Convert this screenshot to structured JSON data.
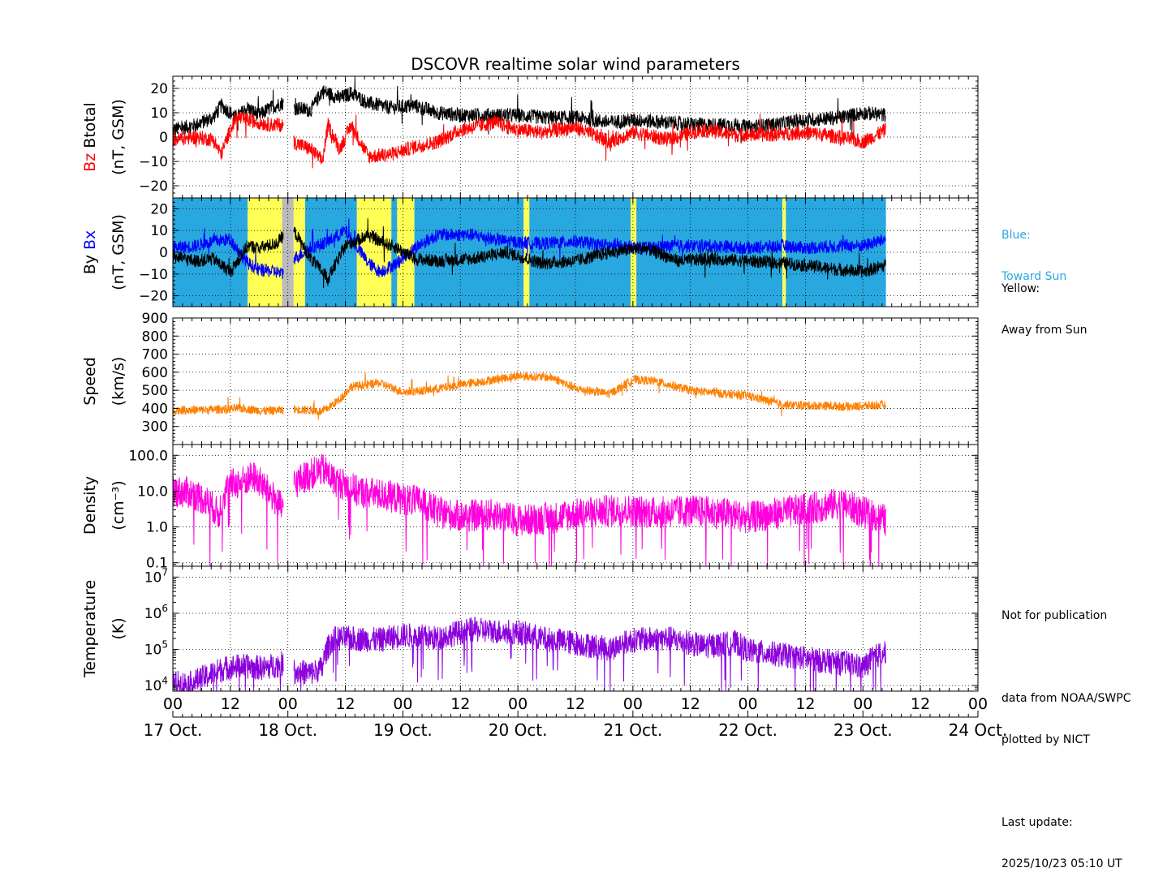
{
  "chart_data": {
    "type": "line",
    "title": "DSCOVR realtime solar wind parameters",
    "x_axis": {
      "range_days": [
        0,
        7
      ],
      "hour_tick_labels": [
        "00",
        "12",
        "00",
        "12",
        "00",
        "12",
        "00",
        "12",
        "00",
        "12",
        "00",
        "12",
        "00",
        "12",
        "00"
      ],
      "date_labels": [
        "17 Oct.",
        "18 Oct.",
        "19 Oct.",
        "20 Oct.",
        "21 Oct.",
        "22 Oct.",
        "23 Oct.",
        "24 Oct."
      ],
      "data_end_day": 6.2
    },
    "panels": [
      {
        "id": "mag",
        "ylabel_parts": [
          {
            "text": "Bz",
            "color": "#ff0000"
          },
          {
            "text": "Btotal",
            "color": "#000000"
          }
        ],
        "ylabel_unit": "(nT, GSM)",
        "ylim": [
          -25,
          25
        ],
        "yticks": [
          -20,
          -10,
          0,
          10,
          20
        ],
        "ytick_labels": [
          "−20",
          "−10",
          "0",
          "10",
          "20"
        ],
        "scale": "linear",
        "series": [
          {
            "name": "Btotal",
            "color": "#000000",
            "gaps": [
              [
                0.96,
                1.05
              ]
            ],
            "x": [
              0,
              0.2,
              0.35,
              0.42,
              0.5,
              0.55,
              0.65,
              0.75,
              0.85,
              0.95,
              1.05,
              1.2,
              1.3,
              1.45,
              1.55,
              1.7,
              1.9,
              2.1,
              2.3,
              2.5,
              2.8,
              3.0,
              3.2,
              3.5,
              3.8,
              4.0,
              4.3,
              4.6,
              4.9,
              5.0,
              5.2,
              5.5,
              5.8,
              6.0,
              6.2
            ],
            "y": [
              3,
              5,
              8,
              13,
              10,
              8,
              12,
              9,
              12,
              14,
              12,
              11,
              19,
              16,
              18,
              14,
              12,
              13,
              10,
              9,
              9,
              9,
              8,
              8,
              6,
              7,
              6,
              5,
              5,
              4,
              5,
              7,
              8,
              10,
              9
            ]
          },
          {
            "name": "Bz",
            "color": "#ff0000",
            "gaps": [
              [
                0.96,
                1.05
              ]
            ],
            "x": [
              0,
              0.2,
              0.35,
              0.42,
              0.5,
              0.55,
              0.65,
              0.75,
              0.85,
              0.95,
              1.05,
              1.2,
              1.3,
              1.35,
              1.45,
              1.55,
              1.7,
              1.9,
              2.1,
              2.3,
              2.5,
              2.8,
              3.0,
              3.2,
              3.5,
              3.8,
              4.0,
              4.3,
              4.6,
              4.9,
              5.0,
              5.2,
              5.5,
              5.8,
              6.0,
              6.2
            ],
            "y": [
              -1,
              0,
              -1,
              -7,
              3,
              8,
              7,
              6,
              5,
              5,
              -2,
              -5,
              -10,
              5,
              -5,
              5,
              -8,
              -7,
              -4,
              -2,
              3,
              6,
              3,
              2,
              4,
              -2,
              2,
              -1,
              3,
              1,
              1,
              1,
              2,
              0,
              -2,
              3
            ]
          }
        ]
      },
      {
        "id": "imf",
        "ylabel_parts": [
          {
            "text": "By",
            "color": "#000000"
          },
          {
            "text": "Bx",
            "color": "#0000ff"
          }
        ],
        "ylabel_unit": "(nT, GSM)",
        "ylim": [
          -25,
          25
        ],
        "yticks": [
          -20,
          -10,
          0,
          10,
          20
        ],
        "ytick_labels": [
          "−20",
          "−10",
          "0",
          "10",
          "20"
        ],
        "scale": "linear",
        "sector_colors": {
          "toward": "#29a7df",
          "away": "#ffff55",
          "unknown": "#bbbbbb"
        },
        "sectors": [
          {
            "start": 0.0,
            "end": 0.65,
            "state": "toward"
          },
          {
            "start": 0.65,
            "end": 0.95,
            "state": "away"
          },
          {
            "start": 0.95,
            "end": 1.05,
            "state": "unknown"
          },
          {
            "start": 1.05,
            "end": 1.15,
            "state": "away"
          },
          {
            "start": 1.15,
            "end": 1.6,
            "state": "toward"
          },
          {
            "start": 1.6,
            "end": 1.9,
            "state": "away"
          },
          {
            "start": 1.9,
            "end": 1.95,
            "state": "toward"
          },
          {
            "start": 1.95,
            "end": 2.1,
            "state": "away"
          },
          {
            "start": 2.1,
            "end": 3.05,
            "state": "toward"
          },
          {
            "start": 3.05,
            "end": 3.1,
            "state": "away"
          },
          {
            "start": 3.1,
            "end": 3.98,
            "state": "toward"
          },
          {
            "start": 3.98,
            "end": 4.03,
            "state": "away"
          },
          {
            "start": 4.03,
            "end": 5.3,
            "state": "toward"
          },
          {
            "start": 5.3,
            "end": 5.33,
            "state": "away"
          },
          {
            "start": 5.33,
            "end": 6.2,
            "state": "toward"
          }
        ],
        "series": [
          {
            "name": "Bx",
            "color": "#0000ff",
            "gaps": [
              [
                0.96,
                1.05
              ]
            ],
            "x": [
              0,
              0.2,
              0.35,
              0.5,
              0.65,
              0.75,
              0.9,
              0.95,
              1.05,
              1.2,
              1.35,
              1.5,
              1.7,
              1.8,
              1.95,
              2.1,
              2.3,
              2.6,
              2.9,
              3.2,
              3.5,
              3.8,
              4.1,
              4.4,
              4.7,
              5.0,
              5.3,
              5.5,
              5.8,
              6.0,
              6.2
            ],
            "y": [
              2,
              3,
              5,
              6,
              -5,
              -8,
              -9,
              -10,
              -3,
              2,
              5,
              10,
              -5,
              -9,
              -5,
              2,
              8,
              8,
              5,
              4,
              5,
              3,
              2,
              3,
              3,
              2,
              3,
              2,
              3,
              3,
              6
            ]
          },
          {
            "name": "By",
            "color": "#000000",
            "gaps": [
              [
                0.96,
                1.05
              ]
            ],
            "x": [
              0,
              0.2,
              0.35,
              0.5,
              0.65,
              0.75,
              0.9,
              0.95,
              1.05,
              1.2,
              1.35,
              1.5,
              1.7,
              1.8,
              1.95,
              2.1,
              2.3,
              2.6,
              2.9,
              3.2,
              3.5,
              3.8,
              4.1,
              4.4,
              4.7,
              5.0,
              5.3,
              5.5,
              5.8,
              6.0,
              6.2
            ],
            "y": [
              -2,
              -4,
              -3,
              -9,
              3,
              2,
              4,
              7,
              10,
              -3,
              -12,
              3,
              8,
              5,
              2,
              -3,
              -4,
              -3,
              0,
              -5,
              -4,
              0,
              2,
              -4,
              -3,
              -4,
              -5,
              -6,
              -8,
              -9,
              -6
            ]
          }
        ]
      },
      {
        "id": "speed",
        "ylabel_parts": [
          {
            "text": "Speed",
            "color": "#000000"
          }
        ],
        "ylabel_unit": "(km/s)",
        "ylim": [
          200,
          900
        ],
        "yticks": [
          300,
          400,
          500,
          600,
          700,
          800,
          900
        ],
        "ytick_labels": [
          "300",
          "400",
          "500",
          "600",
          "700",
          "800",
          "900"
        ],
        "scale": "linear",
        "series": [
          {
            "name": "Speed",
            "color": "#ff8000",
            "gaps": [
              [
                0.96,
                1.05
              ]
            ],
            "x": [
              0,
              0.3,
              0.6,
              0.8,
              0.95,
              1.05,
              1.2,
              1.3,
              1.45,
              1.55,
              1.8,
              2.0,
              2.2,
              2.5,
              2.8,
              3.0,
              3.3,
              3.5,
              3.8,
              4.0,
              4.2,
              4.5,
              4.8,
              5.0,
              5.3,
              5.6,
              5.9,
              6.2
            ],
            "y": [
              390,
              392,
              400,
              385,
              390,
              395,
              390,
              380,
              450,
              520,
              540,
              490,
              500,
              530,
              560,
              580,
              570,
              510,
              480,
              560,
              550,
              500,
              480,
              470,
              420,
              415,
              410,
              420
            ]
          }
        ]
      },
      {
        "id": "density",
        "ylabel_parts": [
          {
            "text": "Density",
            "color": "#000000"
          }
        ],
        "ylabel_unit": "(cm⁻³)",
        "ylim": [
          0.08,
          200
        ],
        "yticks": [
          0.1,
          1.0,
          10.0,
          100.0
        ],
        "ytick_labels": [
          "0.1",
          "1.0",
          "10.0",
          "100.0"
        ],
        "scale": "log",
        "series": [
          {
            "name": "Density",
            "color": "#ff00dd",
            "gaps": [
              [
                0.96,
                1.05
              ]
            ],
            "x": [
              0,
              0.15,
              0.3,
              0.4,
              0.5,
              0.6,
              0.7,
              0.8,
              0.9,
              0.95,
              1.05,
              1.15,
              1.3,
              1.4,
              1.6,
              1.8,
              2.0,
              2.15,
              2.3,
              2.5,
              2.8,
              3.0,
              3.3,
              3.6,
              3.9,
              4.2,
              4.5,
              4.8,
              5.0,
              5.3,
              5.6,
              5.8,
              6.0,
              6.2
            ],
            "y": [
              10,
              9,
              5,
              2,
              15,
              18,
              25,
              12,
              5,
              3,
              15,
              25,
              40,
              20,
              10,
              8,
              6,
              5,
              2.5,
              2.0,
              2.2,
              1.5,
              1.8,
              2.5,
              3.0,
              2.5,
              2.8,
              2.4,
              1.8,
              2.5,
              3.5,
              4.5,
              2.5,
              1.5
            ]
          }
        ]
      },
      {
        "id": "temperature",
        "ylabel_parts": [
          {
            "text": "Temperature",
            "color": "#000000"
          }
        ],
        "ylabel_unit": "(K)",
        "ylim": [
          7000,
          20000000
        ],
        "yticks": [
          10000,
          100000,
          1000000,
          10000000
        ],
        "ytick_labels": [
          "10^4",
          "10^5",
          "10^6",
          "10^7"
        ],
        "scale": "log",
        "series": [
          {
            "name": "Temperature",
            "color": "#8b00dd",
            "gaps": [
              [
                0.96,
                1.05
              ]
            ],
            "x": [
              0,
              0.15,
              0.3,
              0.45,
              0.6,
              0.8,
              0.95,
              1.05,
              1.2,
              1.3,
              1.4,
              1.55,
              1.8,
              2.0,
              2.3,
              2.6,
              2.9,
              3.0,
              3.2,
              3.5,
              3.8,
              4.0,
              4.3,
              4.6,
              4.9,
              5.0,
              5.3,
              5.6,
              5.9,
              6.0,
              6.2
            ],
            "y": [
              12000,
              11000,
              18000,
              30000,
              35000,
              30000,
              40000,
              25000,
              22000,
              30000,
              200000,
              200000,
              180000,
              250000,
              200000,
              350000,
              300000,
              300000,
              200000,
              150000,
              100000,
              180000,
              200000,
              120000,
              150000,
              90000,
              70000,
              50000,
              40000,
              30000,
              90000
            ]
          }
        ]
      }
    ]
  },
  "legend_notes": {
    "blue_label": "Blue:",
    "blue_desc": "Toward Sun",
    "yellow_label": "Yellow:",
    "yellow_desc": "Away from Sun"
  },
  "credits": {
    "line1": "Not for publication",
    "line2": "data from NOAA/SWPC",
    "line3": "plotted by NICT",
    "line4": "Last update:",
    "line5": "2025/10/23 05:10 UT"
  },
  "colors": {
    "toward_sun": "#29a7df",
    "away_from_sun": "#ffff55"
  }
}
